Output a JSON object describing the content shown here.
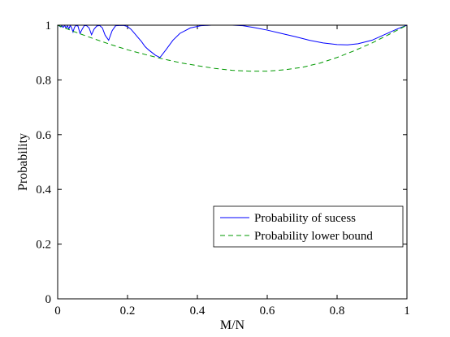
{
  "chart_data": {
    "type": "line",
    "xlabel": "M/N",
    "ylabel": "Probability",
    "xlim": [
      0,
      1
    ],
    "ylim": [
      0,
      1
    ],
    "x_ticks": [
      "0",
      "0.2",
      "0.4",
      "0.6",
      "0.8",
      "1"
    ],
    "y_ticks": [
      "0",
      "0.2",
      "0.4",
      "0.6",
      "0.8",
      "1"
    ],
    "grid": false,
    "legend_position": "lower-right",
    "series": [
      {
        "name": "Probability of sucess",
        "color": "#0000ff",
        "style": "solid",
        "x": [
          0,
          0.005,
          0.008,
          0.012,
          0.016,
          0.02,
          0.024,
          0.028,
          0.032,
          0.036,
          0.04,
          0.044,
          0.048,
          0.052,
          0.058,
          0.064,
          0.07,
          0.076,
          0.082,
          0.09,
          0.097,
          0.104,
          0.112,
          0.12,
          0.128,
          0.136,
          0.146,
          0.156,
          0.166,
          0.178,
          0.19,
          0.2,
          0.21,
          0.22,
          0.23,
          0.24,
          0.25,
          0.26,
          0.27,
          0.28,
          0.293,
          0.31,
          0.33,
          0.35,
          0.38,
          0.41,
          0.44,
          0.47,
          0.5,
          0.53,
          0.56,
          0.6,
          0.64,
          0.68,
          0.72,
          0.76,
          0.8,
          0.83,
          0.86,
          0.9,
          0.94,
          0.97,
          1.0
        ],
        "y": [
          1.0,
          0.997,
          0.994,
          0.998,
          0.992,
          0.999,
          0.99,
          0.998,
          0.986,
          0.999,
          0.99,
          0.975,
          0.992,
          0.999,
          0.997,
          0.97,
          0.985,
          0.998,
          0.999,
          0.99,
          0.965,
          0.985,
          0.997,
          0.999,
          0.99,
          0.963,
          0.945,
          0.98,
          0.998,
          0.999,
          0.999,
          0.995,
          0.985,
          0.97,
          0.955,
          0.94,
          0.922,
          0.91,
          0.9,
          0.89,
          0.882,
          0.91,
          0.945,
          0.97,
          0.99,
          0.998,
          1.0,
          1.0,
          1.0,
          0.998,
          0.992,
          0.982,
          0.97,
          0.958,
          0.945,
          0.935,
          0.929,
          0.928,
          0.932,
          0.945,
          0.968,
          0.985,
          1.0
        ]
      },
      {
        "name": "Probability lower bound",
        "color": "#009900",
        "style": "dashed",
        "x": [
          0,
          0.05,
          0.1,
          0.15,
          0.2,
          0.25,
          0.3,
          0.35,
          0.4,
          0.45,
          0.5,
          0.55,
          0.6,
          0.65,
          0.7,
          0.75,
          0.8,
          0.85,
          0.9,
          0.95,
          1.0
        ],
        "y": [
          1.0,
          0.975,
          0.952,
          0.93,
          0.91,
          0.893,
          0.877,
          0.863,
          0.852,
          0.842,
          0.835,
          0.832,
          0.832,
          0.837,
          0.846,
          0.861,
          0.882,
          0.907,
          0.935,
          0.967,
          1.0
        ]
      }
    ]
  }
}
